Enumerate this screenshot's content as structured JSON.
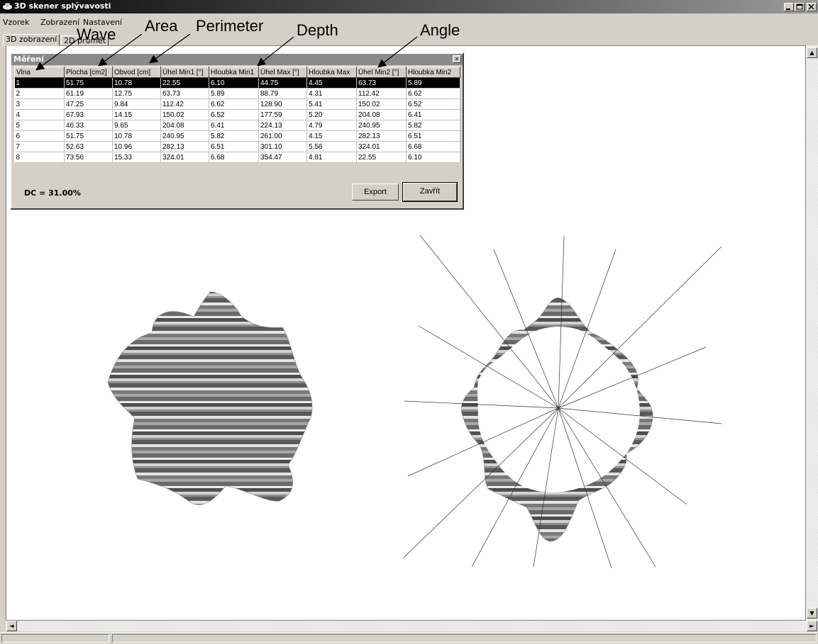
{
  "window": {
    "title": "3D skener splývavosti"
  },
  "menu": [
    "Vzorek",
    "Zobrazení",
    "Nastavení"
  ],
  "tabs": [
    "3D zobrazení",
    "2D průmět"
  ],
  "dialog": {
    "title": "Měření",
    "columns": [
      "Vlna",
      "Plocha [cm2]",
      "Obvod [cm]",
      "Úhel Min1 [°]",
      "Hloubka Min1",
      "Úhel Max [°]",
      "Hloubka Max",
      "Úhel Min2 [°]",
      "Hloubka Min2"
    ],
    "rows": [
      [
        "1",
        "51.75",
        "10.78",
        "22.55",
        "6.10",
        "44.75",
        "4.45",
        "63.73",
        "5.89"
      ],
      [
        "2",
        "61.19",
        "12.75",
        "63.73",
        "5.89",
        "88.79",
        "4.31",
        "112.42",
        "6.62"
      ],
      [
        "3",
        "47.25",
        "9.84",
        "112.42",
        "6.62",
        "128.90",
        "5.41",
        "150.02",
        "6.52"
      ],
      [
        "4",
        "67.93",
        "14.15",
        "150.02",
        "6.52",
        "177.59",
        "5.20",
        "204.08",
        "6.41"
      ],
      [
        "5",
        "46.33",
        "9.65",
        "204.08",
        "6.41",
        "224.13",
        "4.79",
        "240.95",
        "5.82"
      ],
      [
        "6",
        "51.75",
        "10.78",
        "240.95",
        "5.82",
        "261.00",
        "4.15",
        "282.13",
        "6.51"
      ],
      [
        "7",
        "52.63",
        "10.96",
        "282.13",
        "6.51",
        "301.10",
        "5.56",
        "324.01",
        "6.68"
      ],
      [
        "8",
        "73.56",
        "15.33",
        "324.01",
        "6.68",
        "354.47",
        "4.81",
        "22.55",
        "6.10"
      ]
    ],
    "selected_row": 0,
    "dc": "DC = 31.00%",
    "export_label": "Export",
    "close_label": "Zavřít"
  },
  "annotations": [
    "Wave",
    "Area",
    "Perimeter",
    "Depth",
    "Angle"
  ],
  "colors": {
    "title_bar": "#0a0a0a",
    "face": "#d4d0c8",
    "selection": "#000000",
    "client": "#ffffff"
  },
  "icons": [
    "app-icon",
    "minimize-icon",
    "maximize-icon",
    "close-icon",
    "scroll-up-icon",
    "scroll-down-icon",
    "scroll-left-icon",
    "scroll-right-icon"
  ]
}
